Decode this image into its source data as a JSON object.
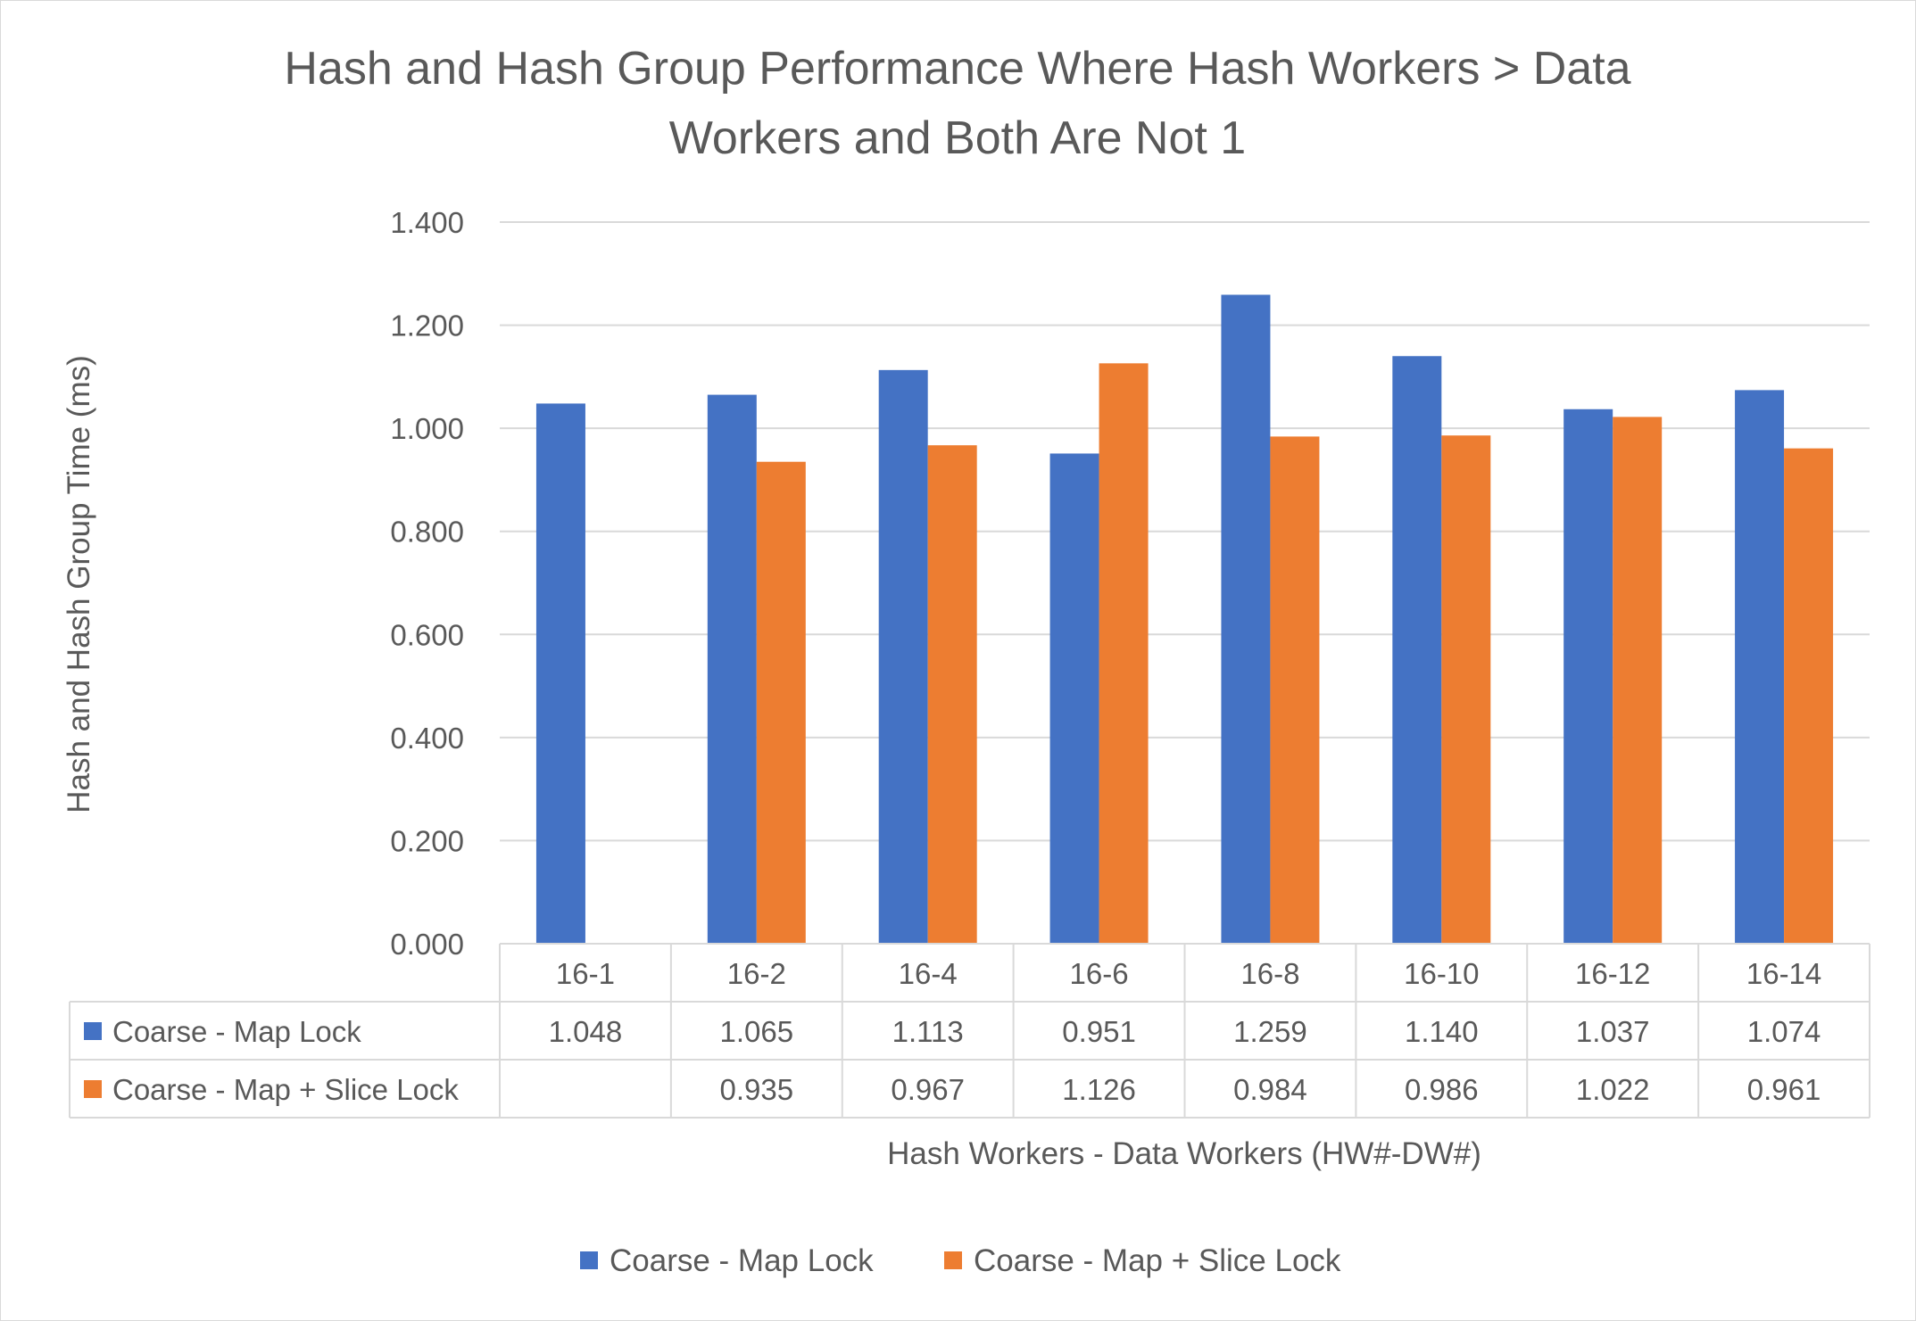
{
  "chart_data": {
    "type": "bar",
    "title_lines": [
      "Hash and Hash Group Performance Where Hash Workers > Data",
      "Workers and Both Are Not 1"
    ],
    "xlabel": "Hash Workers - Data Workers (HW#-DW#)",
    "ylabel": "Hash and Hash Group Time (ms)",
    "ylim": [
      0,
      1.4
    ],
    "yticks": [
      "0.000",
      "0.200",
      "0.400",
      "0.600",
      "0.800",
      "1.000",
      "1.200",
      "1.400"
    ],
    "grid": true,
    "legend_position": "bottom",
    "data_table": true,
    "categories": [
      "16-1",
      "16-2",
      "16-4",
      "16-6",
      "16-8",
      "16-10",
      "16-12",
      "16-14"
    ],
    "series": [
      {
        "name": "Coarse - Map Lock",
        "color": "#4472c4",
        "values": [
          1.048,
          1.065,
          1.113,
          0.951,
          1.259,
          1.14,
          1.037,
          1.074
        ],
        "labels": [
          "1.048",
          "1.065",
          "1.113",
          "0.951",
          "1.259",
          "1.140",
          "1.037",
          "1.074"
        ]
      },
      {
        "name": "Coarse - Map + Slice Lock",
        "color": "#ed7d31",
        "values": [
          null,
          0.935,
          0.967,
          1.126,
          0.984,
          0.986,
          1.022,
          0.961
        ],
        "labels": [
          "",
          "0.935",
          "0.967",
          "1.126",
          "0.984",
          "0.986",
          "1.022",
          "0.961"
        ]
      }
    ]
  }
}
